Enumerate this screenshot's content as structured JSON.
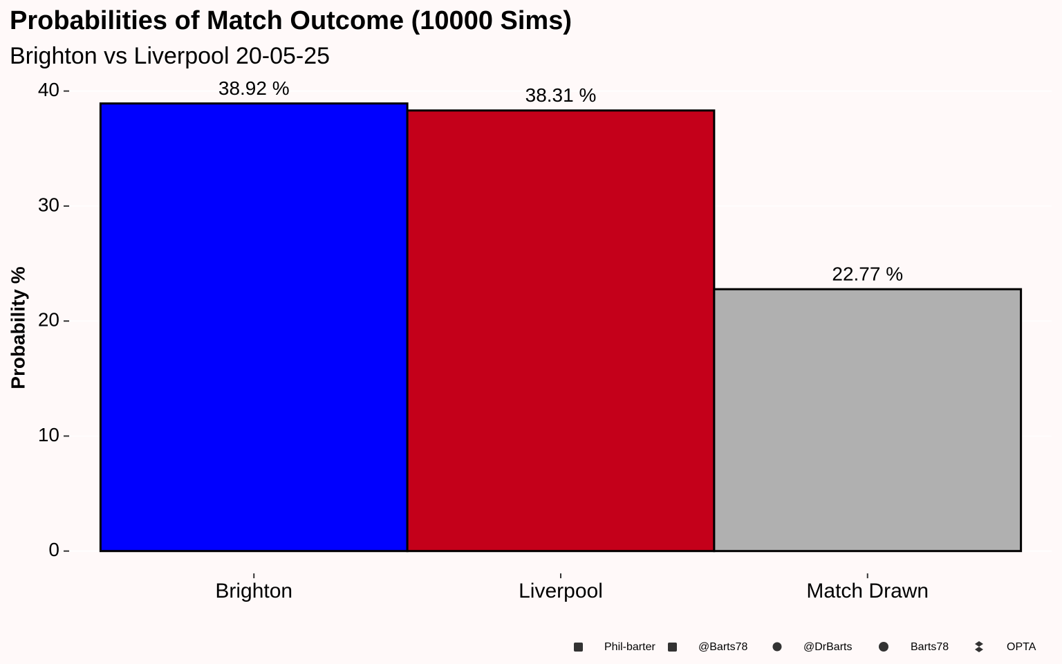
{
  "chart_data": {
    "type": "bar",
    "title": "Probabilities of Match Outcome (10000 Sims)",
    "subtitle": "Brighton vs Liverpool 20-05-25",
    "y_label": "Probability %",
    "categories": [
      "Brighton",
      "Liverpool",
      "Match Drawn"
    ],
    "values": [
      38.92,
      38.31,
      22.77
    ],
    "value_labels": [
      "38.92  %",
      "38.31  %",
      "22.77  %"
    ],
    "colors": [
      "#0000ff",
      "#c4001a",
      "#b0b0b0"
    ],
    "ylim": [
      -1.1,
      41
    ],
    "yticks": [
      0,
      10,
      20,
      30,
      40
    ],
    "grid": true,
    "caption": [
      "Phil-barter",
      "@Barts78",
      "@DrBarts",
      "Barts78",
      "OPTA"
    ]
  }
}
